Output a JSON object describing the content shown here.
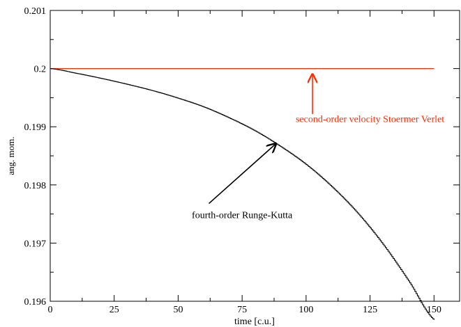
{
  "chart_data": {
    "type": "line",
    "title": "",
    "xlabel": "time [c.u.]",
    "ylabel": "ang. mom.",
    "xlim": [
      0,
      160
    ],
    "ylim": [
      0.196,
      0.201
    ],
    "x_ticks": [
      0,
      25,
      50,
      75,
      100,
      125,
      150
    ],
    "x_tick_labels": [
      "0",
      "25",
      "50",
      "75",
      "100",
      "125",
      "150"
    ],
    "y_ticks": [
      0.196,
      0.197,
      0.198,
      0.199,
      0.2,
      0.201
    ],
    "y_tick_labels": [
      "0.196",
      "0.197",
      "0.198",
      "0.199",
      "0.2",
      "0.201"
    ],
    "grid": false,
    "series": [
      {
        "name": "second-order velocity Stoermer Verlet",
        "color": "#ff2a00",
        "x": [
          0,
          25,
          50,
          75,
          100,
          125,
          150
        ],
        "y": [
          0.2,
          0.2,
          0.2,
          0.2,
          0.2,
          0.2,
          0.2
        ]
      },
      {
        "name": "fourth-order Runge-Kutta",
        "color": "#000000",
        "stepped": true,
        "x": [
          0,
          10,
          20,
          30,
          40,
          50,
          60,
          70,
          80,
          90,
          100,
          110,
          120,
          130,
          140,
          150
        ],
        "y": [
          0.2,
          0.19992,
          0.19983,
          0.19973,
          0.19962,
          0.19949,
          0.19934,
          0.19915,
          0.19893,
          0.19866,
          0.19835,
          0.19797,
          0.19752,
          0.19698,
          0.19635,
          0.19568
        ]
      }
    ],
    "annotations": [
      {
        "text": "second-order velocity Stoermer Verlet",
        "color": "#ff2a00",
        "text_at": [
          125,
          0.19908
        ],
        "arrow_from": [
          102.5,
          0.19922
        ],
        "arrow_to": [
          102.5,
          0.19992
        ]
      },
      {
        "text": "fourth-order Runge-Kutta",
        "color": "#000000",
        "text_at": [
          75,
          0.19743
        ],
        "arrow_from": [
          62,
          0.19768
        ],
        "arrow_to": [
          88.5,
          0.19872
        ]
      }
    ]
  }
}
